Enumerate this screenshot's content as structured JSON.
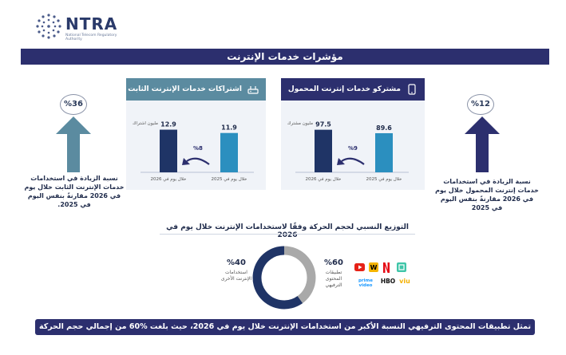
{
  "logo": {
    "title": "NTRA",
    "subtitle": "National Telecom Regulatory Authority"
  },
  "header": {
    "title": "مؤشرات خدمات الإنترنت"
  },
  "colors": {
    "navy": "#2c2f6e",
    "teal": "#5b8ba0",
    "dark_bar": "#1f3466",
    "light_bar": "#2b8fbf",
    "gray": "#a9a9a9"
  },
  "chart_data": [
    {
      "type": "bar",
      "title": "اشتراكات خدمات الإنترنت الثابت",
      "unit_label": "مليون اشتراك",
      "categories": [
        "خلال يوم في 2026",
        "خلال يوم في 2025"
      ],
      "values": [
        12.9,
        11.9
      ],
      "change_label": "%8"
    },
    {
      "type": "bar",
      "title": "مشتركو خدمات إنترنت المحمول",
      "unit_label": "مليون مشترك",
      "categories": [
        "خلال يوم في 2026",
        "خلال يوم في 2025"
      ],
      "values": [
        97.5,
        89.6
      ],
      "change_label": "%9"
    },
    {
      "type": "pie",
      "title": "التوزيع النسبي لحجم الحركة وفقًا لاستخدامات الإنترنت خلال يوم في 2026",
      "categories": [
        "تطبيقات المحتوى الترفيهي",
        "استخدامات الإنترنت الأخرى"
      ],
      "values": [
        60,
        40
      ],
      "value_labels": [
        "%60",
        "%40"
      ]
    }
  ],
  "side_left": {
    "pct": "%36",
    "text": "نسبة الزيادة في استخدامات خدمات الإنترنت الثابت خلال يوم في 2026 مقارنةً بنفس اليوم في 2025."
  },
  "side_right": {
    "pct": "%12",
    "text": "نسبة الزيادة في استخدامات خدمات إنترنت المحمول خلال يوم في 2026 مقارنةً بنفس اليوم في 2025"
  },
  "apps": [
    "prime video",
    "HBO",
    "viu"
  ],
  "footer": {
    "text": "تمثل تطبيقات المحتوى الترفيهي النسبة الأكبر من استخدامات الإنترنت خلال يوم في 2026، حيث بلغت %60 من إجمالي حجم الحركة"
  }
}
